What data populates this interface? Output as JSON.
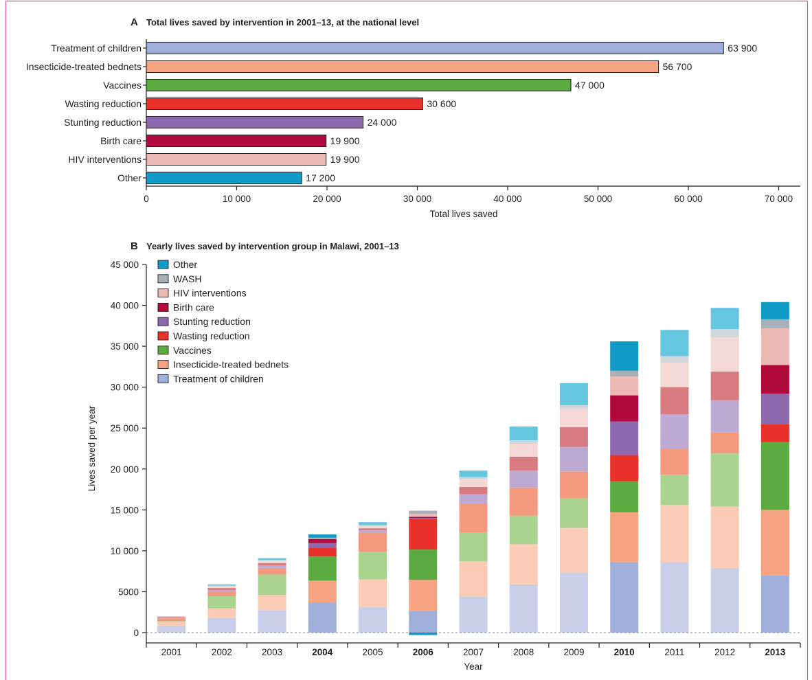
{
  "frame": {
    "border_color": "#cf4f9b"
  },
  "chart_data": [
    {
      "type": "bar",
      "orientation": "horizontal",
      "panel_label": "A",
      "title": "Total lives saved by intervention in 2001–13, at the national level",
      "categories": [
        "Treatment of children",
        "Insecticide-treated bednets",
        "Vaccines",
        "Wasting reduction",
        "Stunting reduction",
        "Birth care",
        "HIV interventions",
        "Other"
      ],
      "values": [
        63900,
        56700,
        47000,
        30600,
        24000,
        19900,
        19900,
        17200
      ],
      "value_labels": [
        "63 900",
        "56 700",
        "47 000",
        "30 600",
        "24 000",
        "19 900",
        "19 900",
        "17 200"
      ],
      "colors": [
        "#9fafda",
        "#f6a381",
        "#5cab3f",
        "#e8312b",
        "#8e69ae",
        "#b00a3d",
        "#ebbab5",
        "#0f9bc5"
      ],
      "xlabel": "Total lives saved",
      "ylabel": "",
      "xlim": [
        0,
        70000
      ],
      "xticks": [
        0,
        10000,
        20000,
        30000,
        40000,
        50000,
        60000,
        70000
      ],
      "xtick_labels": [
        "0",
        "10 000",
        "20 000",
        "30 000",
        "40 000",
        "50 000",
        "60 000",
        "70 000"
      ],
      "grid": false
    },
    {
      "type": "bar",
      "stacked": true,
      "panel_label": "B",
      "title": "Yearly lives saved by intervention group in Malawi, 2001–13",
      "categories": [
        "2001",
        "2002",
        "2003",
        "2004",
        "2005",
        "2006",
        "2007",
        "2008",
        "2009",
        "2010",
        "2011",
        "2012",
        "2013"
      ],
      "highlighted": [
        false,
        false,
        false,
        true,
        false,
        true,
        false,
        false,
        false,
        true,
        false,
        false,
        true
      ],
      "series": [
        {
          "name": "Treatment of children",
          "color": "#9fafda",
          "light_color": "#c9cfe9",
          "values": [
            850,
            1800,
            2750,
            3650,
            3100,
            2600,
            4400,
            5900,
            7300,
            8600,
            8600,
            7900,
            7000
          ]
        },
        {
          "name": "Insecticide-treated bednets",
          "color": "#f6a381",
          "light_color": "#fbcbb5",
          "values": [
            500,
            1150,
            1850,
            2700,
            3400,
            3850,
            4300,
            4900,
            5500,
            6100,
            7000,
            7500,
            8000
          ]
        },
        {
          "name": "Vaccines",
          "color": "#5cab3f",
          "light_color": "#aad38f",
          "values": [
            50,
            1500,
            2500,
            2950,
            3350,
            3700,
            3500,
            3500,
            3600,
            3800,
            3700,
            6500,
            8300
          ]
        },
        {
          "name": "Wasting reduction",
          "color": "#e8312b",
          "light_color": "#f4997e",
          "values": [
            350,
            550,
            800,
            1100,
            2400,
            3750,
            3500,
            3400,
            3300,
            3200,
            3200,
            2600,
            2200
          ]
        },
        {
          "name": "Stunting reduction",
          "color": "#8e69ae",
          "light_color": "#bdaad3",
          "values": [
            50,
            200,
            300,
            550,
            250,
            100,
            1200,
            2100,
            3000,
            4100,
            4200,
            3900,
            3700
          ]
        },
        {
          "name": "Birth care",
          "color": "#b00a3d",
          "light_color": "#d77b80",
          "values": [
            100,
            250,
            300,
            500,
            250,
            150,
            900,
            1700,
            2400,
            3200,
            3300,
            3500,
            3500
          ]
        },
        {
          "name": "HIV interventions",
          "color": "#ebbab5",
          "light_color": "#f3d8d6",
          "values": [
            50,
            200,
            250,
            80,
            250,
            350,
            1000,
            1600,
            2200,
            2300,
            3000,
            4200,
            4500
          ]
        },
        {
          "name": "WASH",
          "color": "#a7b0b7",
          "light_color": "#d0d6db",
          "values": [
            20,
            100,
            150,
            70,
            150,
            400,
            200,
            400,
            500,
            700,
            800,
            1000,
            1100
          ]
        },
        {
          "name": "Other",
          "color": "#0f9bc5",
          "light_color": "#65c6e0",
          "values": [
            30,
            150,
            200,
            400,
            350,
            -300,
            800,
            1700,
            2700,
            3600,
            3200,
            2600,
            2100
          ]
        }
      ],
      "xlabel": "Year",
      "ylabel": "Lives saved per year",
      "ylim": [
        0,
        45000
      ],
      "yticks": [
        0,
        5000,
        10000,
        15000,
        20000,
        25000,
        30000,
        35000,
        40000,
        45000
      ],
      "ytick_labels": [
        "0",
        "5000",
        "10 000",
        "15 000",
        "20 000",
        "25 000",
        "30 000",
        "35 000",
        "40 000",
        "45 000"
      ],
      "legend_position": "top-left",
      "grid": false
    }
  ]
}
